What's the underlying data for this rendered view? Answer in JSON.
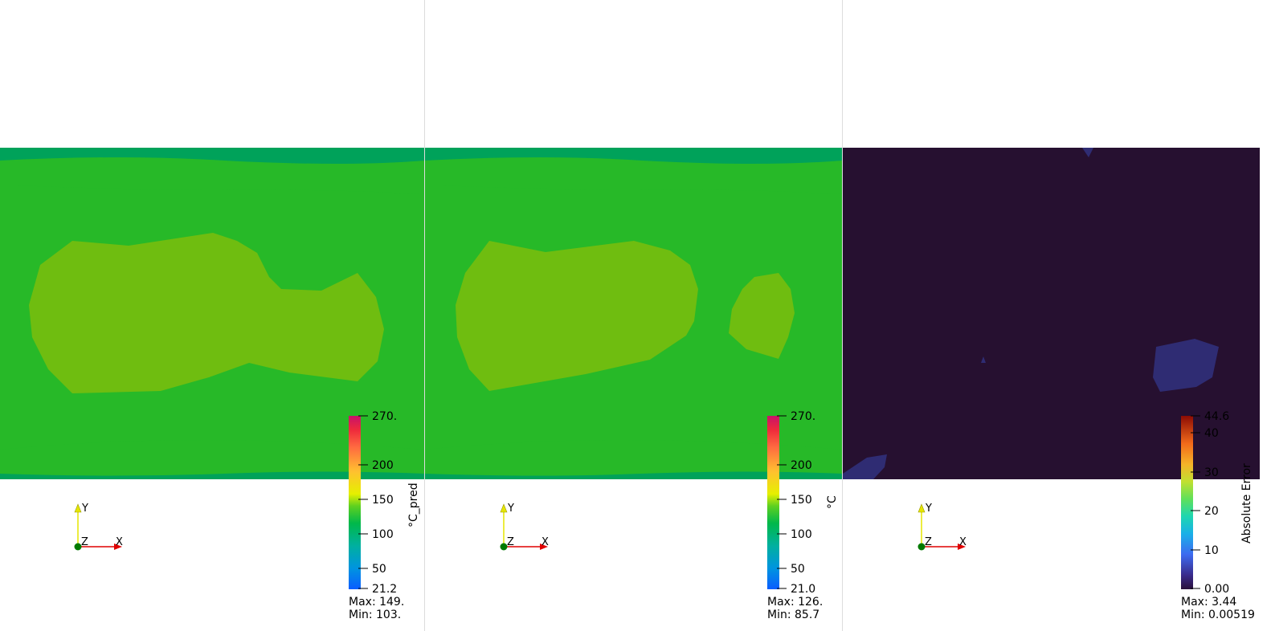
{
  "views": [
    {
      "scalar_title": "°C_pred",
      "bar_ticks": [
        "270.",
        "200",
        "150",
        "100",
        "50",
        "21.2"
      ],
      "max_text": "Max: 149.",
      "min_text": "Min: 103."
    },
    {
      "scalar_title": "°C",
      "bar_ticks": [
        "270.",
        "200",
        "150",
        "100",
        "50",
        "21.0"
      ],
      "max_text": "Max: 126.",
      "min_text": "Min: 85.7"
    },
    {
      "scalar_title": "Absolute Error",
      "bar_ticks": [
        "44.6",
        "40",
        "30",
        "20",
        "10",
        "0.00"
      ],
      "max_text": "Max: 3.44",
      "min_text": "Min: 0.00519"
    }
  ],
  "axes": {
    "x": "X",
    "y": "Y",
    "z": "Z"
  },
  "colors": {
    "outer_band": "#00a25a",
    "mid_band": "#27b928",
    "inner_band": "#6fbd10",
    "error_bg": "#261030",
    "error_patch": "#2f2c73",
    "x_axis": "#e00000",
    "y_axis": "#e6e600",
    "origin": "#007a00"
  }
}
